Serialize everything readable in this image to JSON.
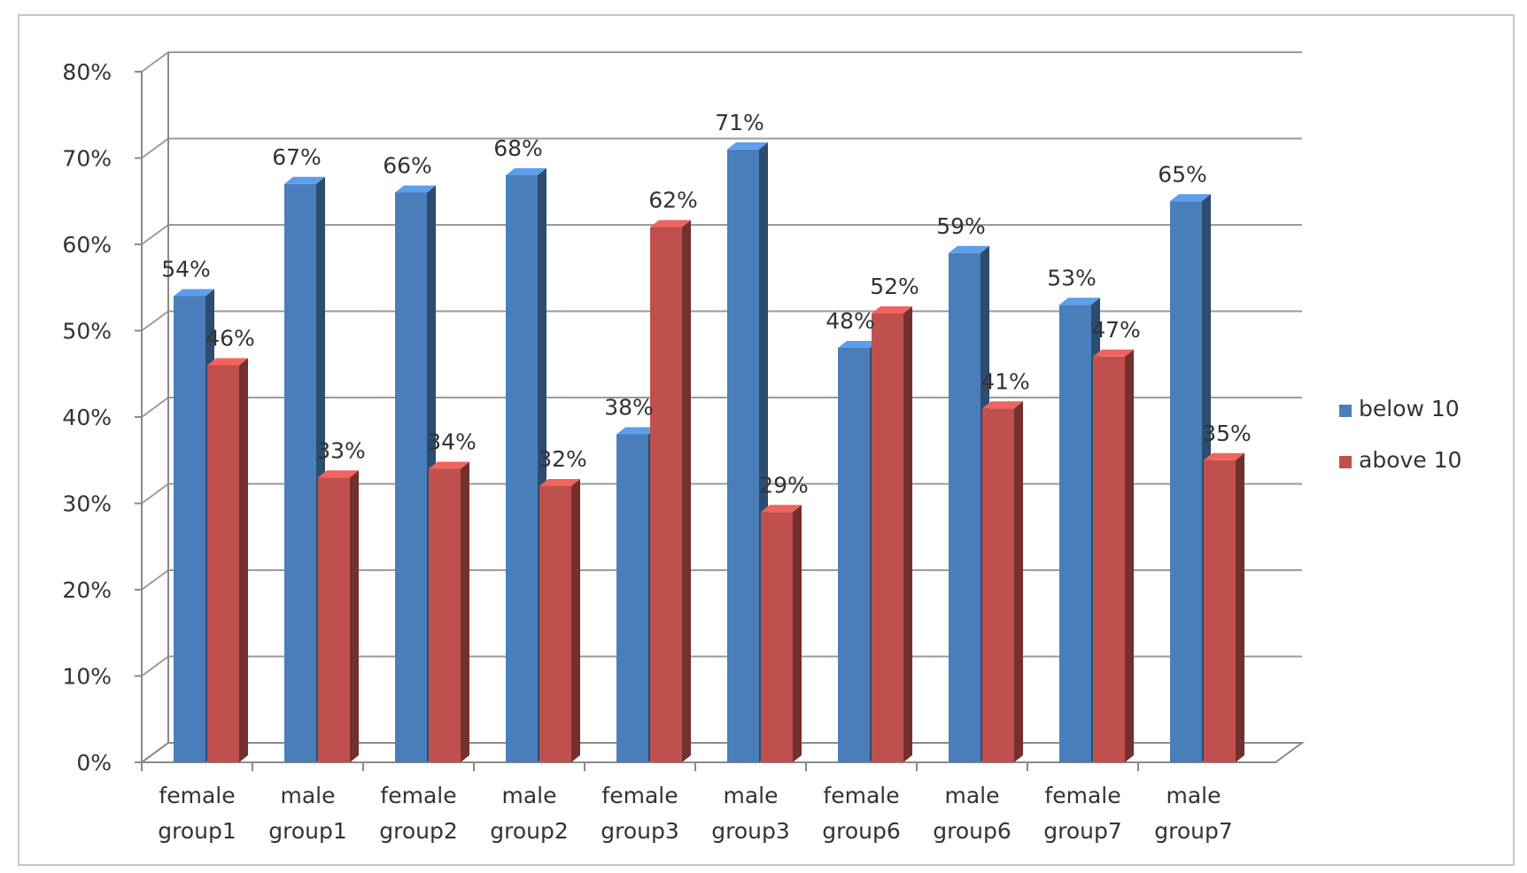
{
  "chart_data": {
    "type": "bar",
    "title": "",
    "xlabel": "",
    "ylabel": "",
    "ylim": [
      0,
      80
    ],
    "y_tick_labels": [
      "0%",
      "10%",
      "20%",
      "30%",
      "40%",
      "50%",
      "60%",
      "70%",
      "80%"
    ],
    "categories": [
      [
        "female",
        "group1"
      ],
      [
        "male",
        "group1"
      ],
      [
        "female",
        "group2"
      ],
      [
        "male",
        "group2"
      ],
      [
        "female",
        "group3"
      ],
      [
        "male",
        "group3"
      ],
      [
        "female",
        "group6"
      ],
      [
        "male",
        "group6"
      ],
      [
        "female",
        "group7"
      ],
      [
        "male",
        "group7"
      ]
    ],
    "series": [
      {
        "name": "below 10",
        "color": "#4a7ebb",
        "values": [
          54,
          67,
          66,
          68,
          38,
          71,
          48,
          59,
          53,
          65
        ],
        "labels": [
          "54%",
          "67%",
          "66%",
          "68%",
          "38%",
          "71%",
          "48%",
          "59%",
          "53%",
          "65%"
        ]
      },
      {
        "name": "above 10",
        "color": "#c0504d",
        "values": [
          46,
          33,
          34,
          32,
          62,
          29,
          52,
          41,
          47,
          35
        ],
        "labels": [
          "46%",
          "33%",
          "34%",
          "32%",
          "62%",
          "29%",
          "52%",
          "41%",
          "47%",
          "35%"
        ]
      }
    ],
    "grid": true,
    "legend_position": "right",
    "style": "3d-column"
  }
}
